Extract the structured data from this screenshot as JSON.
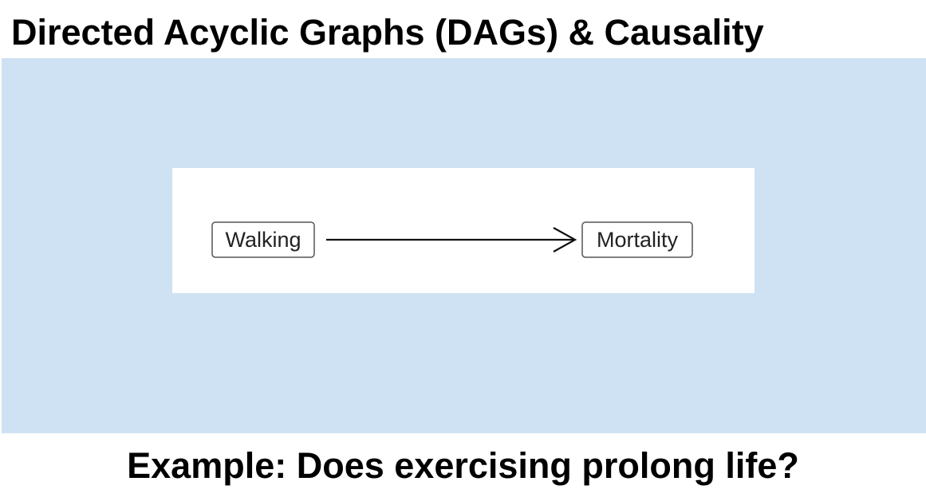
{
  "slide": {
    "title": "Directed Acyclic Graphs (DAGs) & Causality",
    "caption": "Example: Does exercising prolong life?"
  },
  "diagram": {
    "nodes": [
      {
        "id": "walking",
        "label": "Walking"
      },
      {
        "id": "mortality",
        "label": "Mortality"
      }
    ],
    "edges": [
      {
        "from": "walking",
        "to": "mortality"
      }
    ]
  },
  "colors": {
    "panel_background": "#cfe2f3",
    "diagram_background": "#ffffff",
    "edge": "#111111"
  }
}
